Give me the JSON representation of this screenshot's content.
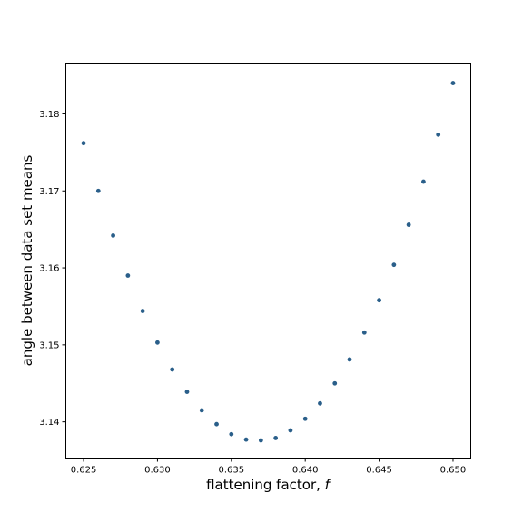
{
  "chart_data": {
    "type": "scatter",
    "title": "",
    "xlabel": "flattening factor, ",
    "xlabel_var": "f",
    "ylabel": "angle between data set means",
    "xlim": [
      0.6238,
      0.6512
    ],
    "ylim": [
      3.1353,
      3.1866
    ],
    "xticks": [
      0.625,
      0.63,
      0.635,
      0.64,
      0.645,
      0.65
    ],
    "xtick_labels": [
      "0.625",
      "0.630",
      "0.635",
      "0.640",
      "0.645",
      "0.650"
    ],
    "yticks": [
      3.14,
      3.15,
      3.16,
      3.17,
      3.18
    ],
    "ytick_labels": [
      "3.14",
      "3.15",
      "3.16",
      "3.17",
      "3.18"
    ],
    "grid": false,
    "marker_color": "#2a5f8a",
    "series": [
      {
        "x": [
          0.625,
          0.626,
          0.627,
          0.628,
          0.629,
          0.63,
          0.631,
          0.632,
          0.633,
          0.634,
          0.635,
          0.636,
          0.637,
          0.638,
          0.639,
          0.64,
          0.641,
          0.642,
          0.643,
          0.644,
          0.645,
          0.646,
          0.647,
          0.648,
          0.649,
          0.65
        ],
        "y": [
          3.1762,
          3.17,
          3.1642,
          3.159,
          3.1544,
          3.1503,
          3.1468,
          3.1439,
          3.1415,
          3.1397,
          3.1384,
          3.1377,
          3.1376,
          3.1379,
          3.1389,
          3.1404,
          3.1424,
          3.145,
          3.1481,
          3.1516,
          3.1558,
          3.1604,
          3.1656,
          3.1712,
          3.1773,
          3.184
        ]
      }
    ]
  }
}
